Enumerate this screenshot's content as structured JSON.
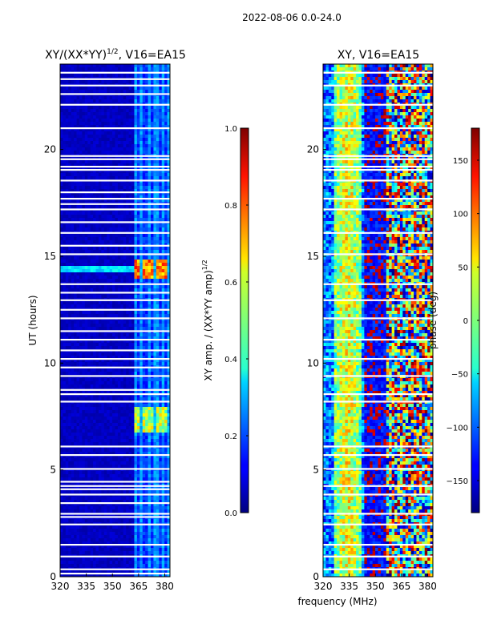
{
  "suptitle": "2022-08-06 0.0-24.0",
  "chart_data": [
    {
      "type": "heatmap",
      "id": "amp",
      "title": "XY/(XX*YY)",
      "title_sup": "1/2",
      "title_tail": ", V16=EA15",
      "ylabel": "UT (hours)",
      "xlim": [
        320,
        383
      ],
      "ylim": [
        0,
        24
      ],
      "xticks": [
        320,
        335,
        350,
        365,
        380
      ],
      "yticks": [
        0,
        5,
        10,
        15,
        20
      ],
      "colorbar": {
        "label": "XY amp. / (XX*YY amp)",
        "label_sup": "1/2",
        "range": [
          0.0,
          1.0
        ],
        "ticks": [
          "0.0",
          "0.2",
          "0.4",
          "0.6",
          "0.8",
          "1.0"
        ],
        "tick_values": [
          0.0,
          0.2,
          0.4,
          0.6,
          0.8,
          1.0
        ],
        "colormap": "jet"
      },
      "gap_hours": [
        0.15,
        0.35,
        0.95,
        1.5,
        2.45,
        2.8,
        2.95,
        3.45,
        3.85,
        4.1,
        4.25,
        4.45,
        5.05,
        5.7,
        6.1,
        8.2,
        8.55,
        8.75,
        9.4,
        9.8,
        10.2,
        10.6,
        11.1,
        11.5,
        12.1,
        12.5,
        12.95,
        13.3,
        13.7,
        15.1,
        15.5,
        16.1,
        16.6,
        17.2,
        17.45,
        17.7,
        18.0,
        18.55,
        19.05,
        19.2,
        19.55,
        19.7,
        21.0,
        22.1,
        22.6,
        23.0,
        23.3,
        23.6
      ],
      "hot_blocks": [
        {
          "t0": 6.7,
          "t1": 8.0,
          "f0": 363,
          "f1": 383,
          "level": 0.55
        },
        {
          "t0": 14.0,
          "t1": 14.9,
          "f0": 363,
          "f1": 383,
          "level": 0.75
        }
      ]
    },
    {
      "type": "heatmap",
      "id": "phase",
      "title": "XY, V16=EA15",
      "xlabel": "frequency (MHz)",
      "xlim": [
        320,
        383
      ],
      "ylim": [
        0,
        24
      ],
      "xticks": [
        320,
        335,
        350,
        365,
        380
      ],
      "yticks": [
        0,
        5,
        10,
        15,
        20
      ],
      "colorbar": {
        "label": "phase (deg)",
        "range": [
          -180,
          180
        ],
        "ticks": [
          "150",
          "100",
          "50",
          "0",
          "−50",
          "−100",
          "−150"
        ],
        "tick_values": [
          150,
          100,
          50,
          0,
          -50,
          -100,
          -150
        ],
        "colormap": "jet"
      },
      "gap_hours": [
        0.35,
        0.95,
        1.5,
        2.45,
        2.95,
        3.85,
        4.25,
        5.05,
        5.7,
        6.1,
        8.2,
        8.55,
        9.4,
        10.2,
        11.1,
        12.1,
        12.95,
        13.7,
        15.1,
        16.1,
        17.2,
        17.7,
        18.55,
        19.05,
        19.2,
        19.55,
        19.7,
        21.0,
        22.1,
        23.0,
        23.6
      ]
    }
  ]
}
